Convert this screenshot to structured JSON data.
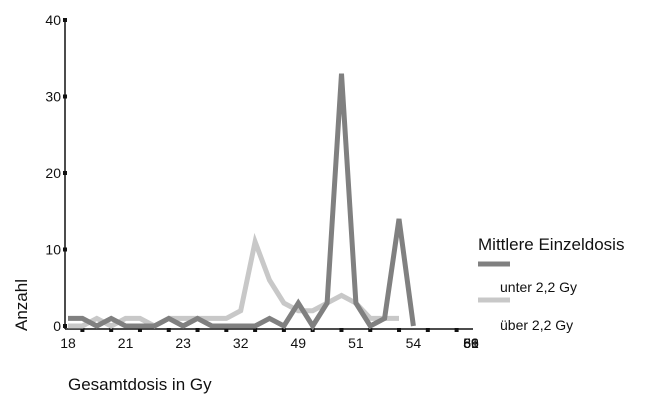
{
  "chart_data": {
    "type": "line",
    "title": "",
    "xlabel": "Gesamtdosis in Gy",
    "ylabel": "Anzahl",
    "ylim": [
      0,
      40
    ],
    "yticks": [
      0,
      10,
      20,
      30,
      40
    ],
    "x_tick_labels": [
      "18",
      "21",
      "23",
      "32",
      "49",
      "51",
      "54",
      "56",
      "59",
      "61",
      "69",
      "86"
    ],
    "point_count": 29,
    "grid": false,
    "legend": {
      "title": "Mittlere Einzeldosis",
      "placement": "right"
    },
    "series": [
      {
        "name": "unter 2,2 Gy",
        "color": "#808080",
        "values": [
          1,
          1,
          0,
          1,
          0,
          0,
          0,
          1,
          0,
          1,
          0,
          0,
          0,
          0,
          1,
          0,
          3,
          0,
          3,
          33,
          3,
          0,
          1,
          14,
          0
        ]
      },
      {
        "name": "über 2,2 Gy",
        "color": "#c8c8c8",
        "values": [
          0,
          0,
          1,
          0,
          1,
          1,
          0,
          1,
          1,
          1,
          1,
          1,
          2,
          11,
          6,
          3,
          2,
          2,
          3,
          4,
          3,
          1,
          1,
          1
        ]
      }
    ]
  }
}
